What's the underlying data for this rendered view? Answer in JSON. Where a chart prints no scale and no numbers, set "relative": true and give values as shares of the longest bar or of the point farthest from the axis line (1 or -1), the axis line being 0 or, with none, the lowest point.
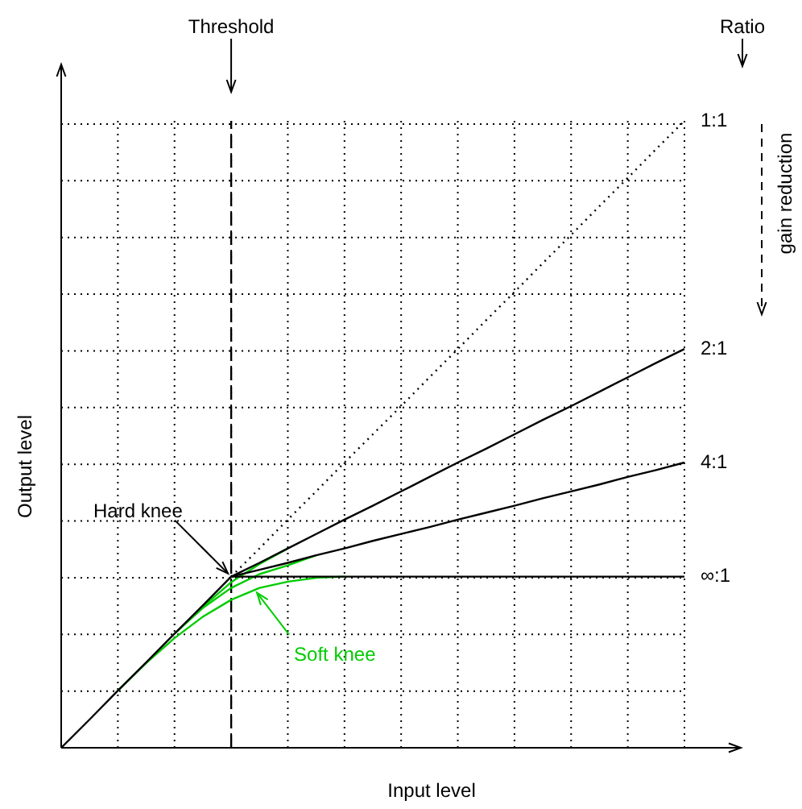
{
  "chart_data": {
    "type": "line",
    "relative": true,
    "xlabel": "Input level",
    "ylabel": "Output level",
    "grid": true,
    "legend": false,
    "categories": [
      null,
      null,
      null,
      null,
      null,
      null,
      null,
      null,
      null,
      null,
      null,
      null,
      null,
      null,
      null,
      null,
      null,
      null,
      null,
      null,
      null,
      null,
      null
    ],
    "series": [
      {
        "name": "1:1",
        "color": "#000000",
        "line_style": "dotted",
        "values": [
          null,
          null,
          null,
          null,
          null,
          null,
          0.273,
          0.318,
          0.364,
          0.409,
          0.455,
          0.5,
          0.545,
          0.591,
          0.636,
          0.682,
          0.727,
          0.773,
          0.818,
          0.864,
          0.909,
          0.955,
          1
        ]
      },
      {
        "name": "2:1",
        "color": "#000000",
        "values": [
          null,
          null,
          null,
          null,
          null,
          null,
          0.273,
          0.295,
          0.318,
          0.341,
          0.364,
          0.386,
          0.409,
          0.432,
          0.455,
          0.477,
          0.5,
          0.523,
          0.545,
          0.568,
          0.591,
          0.614,
          0.636
        ]
      },
      {
        "name": "4:1",
        "color": "#000000",
        "values": [
          null,
          null,
          null,
          null,
          null,
          null,
          0.273,
          0.284,
          0.295,
          0.307,
          0.318,
          0.33,
          0.341,
          0.352,
          0.364,
          0.375,
          0.386,
          0.398,
          0.409,
          0.42,
          0.432,
          0.443,
          0.455
        ]
      },
      {
        "name": "∞:1",
        "color": "#000000",
        "values": [
          0,
          0.045,
          0.091,
          0.136,
          0.182,
          0.227,
          0.273,
          0.273,
          0.273,
          0.273,
          0.273,
          0.273,
          0.273,
          0.273,
          0.273,
          0.273,
          0.273,
          0.273,
          0.273,
          0.273,
          0.273,
          0.273,
          0.273
        ]
      },
      {
        "color": "#00cc00",
        "values": [
          null,
          null,
          null,
          null,
          null,
          0.225,
          0.264,
          0.293,
          0.318,
          null,
          null,
          null,
          null,
          null,
          null,
          null,
          null,
          null,
          null,
          null,
          null,
          null,
          null
        ]
      },
      {
        "color": "#00cc00",
        "values": [
          null,
          null,
          null,
          null,
          0.182,
          0.223,
          0.255,
          0.277,
          0.291,
          0.307,
          null,
          null,
          null,
          null,
          null,
          null,
          null,
          null,
          null,
          null,
          null,
          null,
          null
        ]
      },
      {
        "color": "#00cc00",
        "values": [
          null,
          null,
          0.091,
          0.135,
          0.175,
          0.209,
          0.236,
          0.255,
          0.265,
          0.271,
          0.273,
          null,
          null,
          null,
          null,
          null,
          null,
          null,
          null,
          null,
          null,
          null,
          null
        ]
      }
    ],
    "annotations": [
      "Threshold",
      "Ratio",
      "gain reduction",
      "Hard knee",
      "Soft knee"
    ]
  }
}
